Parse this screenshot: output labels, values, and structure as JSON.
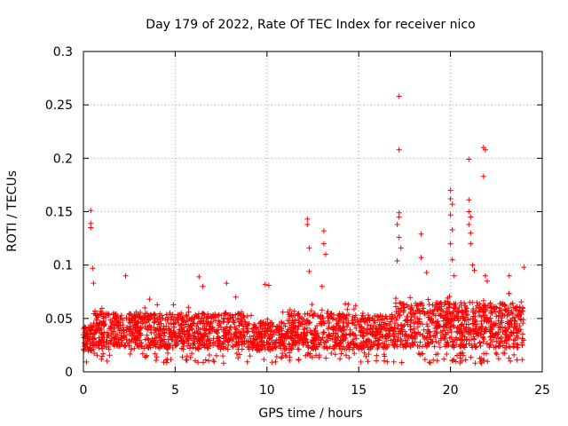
{
  "chart_data": {
    "type": "scatter",
    "title": "Day 179 of 2022, Rate Of TEC Index for receiver nico",
    "xlabel": "GPS time / hours",
    "ylabel": "ROTI / TECUs",
    "xlim": [
      0,
      25
    ],
    "ylim": [
      0,
      0.3
    ],
    "x_ticks": [
      0,
      5,
      10,
      15,
      20,
      25
    ],
    "x_tick_labels": [
      "0",
      "5",
      "10",
      "15",
      "20",
      "25"
    ],
    "y_ticks": [
      0,
      0.05,
      0.1,
      0.15,
      0.2,
      0.25,
      0.3
    ],
    "y_tick_labels": [
      "0",
      "0.05",
      "0.1",
      "0.15",
      "0.2",
      "0.25",
      "0.3"
    ],
    "grid": true,
    "marker": "+",
    "color": "#ff0000",
    "series": [
      {
        "name": "ROTI",
        "baseline_band": {
          "x_range": [
            0,
            24
          ],
          "typical_low": 0.015,
          "typical_high": 0.055
        },
        "points": [
          [
            0.4,
            0.151
          ],
          [
            0.4,
            0.139
          ],
          [
            0.4,
            0.135
          ],
          [
            0.5,
            0.097
          ],
          [
            0.55,
            0.083
          ],
          [
            2.3,
            0.09
          ],
          [
            3.6,
            0.068
          ],
          [
            6.3,
            0.089
          ],
          [
            6.5,
            0.08
          ],
          [
            7.8,
            0.083
          ],
          [
            8.3,
            0.07
          ],
          [
            9.9,
            0.082
          ],
          [
            10.1,
            0.081
          ],
          [
            12.2,
            0.143
          ],
          [
            12.2,
            0.138
          ],
          [
            12.3,
            0.116
          ],
          [
            12.3,
            0.094
          ],
          [
            13.1,
            0.132
          ],
          [
            13.1,
            0.12
          ],
          [
            13.2,
            0.11
          ],
          [
            13.0,
            0.08
          ],
          [
            17.2,
            0.258
          ],
          [
            17.2,
            0.208
          ],
          [
            17.2,
            0.149
          ],
          [
            17.2,
            0.145
          ],
          [
            17.1,
            0.138
          ],
          [
            17.2,
            0.126
          ],
          [
            17.3,
            0.116
          ],
          [
            17.1,
            0.104
          ],
          [
            18.4,
            0.129
          ],
          [
            18.4,
            0.107
          ],
          [
            18.7,
            0.093
          ],
          [
            20.0,
            0.17
          ],
          [
            20.0,
            0.162
          ],
          [
            20.1,
            0.157
          ],
          [
            20.0,
            0.147
          ],
          [
            20.1,
            0.133
          ],
          [
            20.0,
            0.12
          ],
          [
            20.1,
            0.105
          ],
          [
            20.2,
            0.09
          ],
          [
            21.0,
            0.199
          ],
          [
            21.0,
            0.161
          ],
          [
            21.0,
            0.15
          ],
          [
            21.1,
            0.145
          ],
          [
            21.0,
            0.138
          ],
          [
            21.1,
            0.13
          ],
          [
            21.1,
            0.12
          ],
          [
            21.2,
            0.1
          ],
          [
            21.3,
            0.095
          ],
          [
            21.8,
            0.21
          ],
          [
            21.9,
            0.208
          ],
          [
            21.8,
            0.183
          ],
          [
            21.9,
            0.09
          ],
          [
            22.0,
            0.085
          ],
          [
            23.2,
            0.09
          ],
          [
            24.0,
            0.098
          ]
        ]
      }
    ]
  }
}
